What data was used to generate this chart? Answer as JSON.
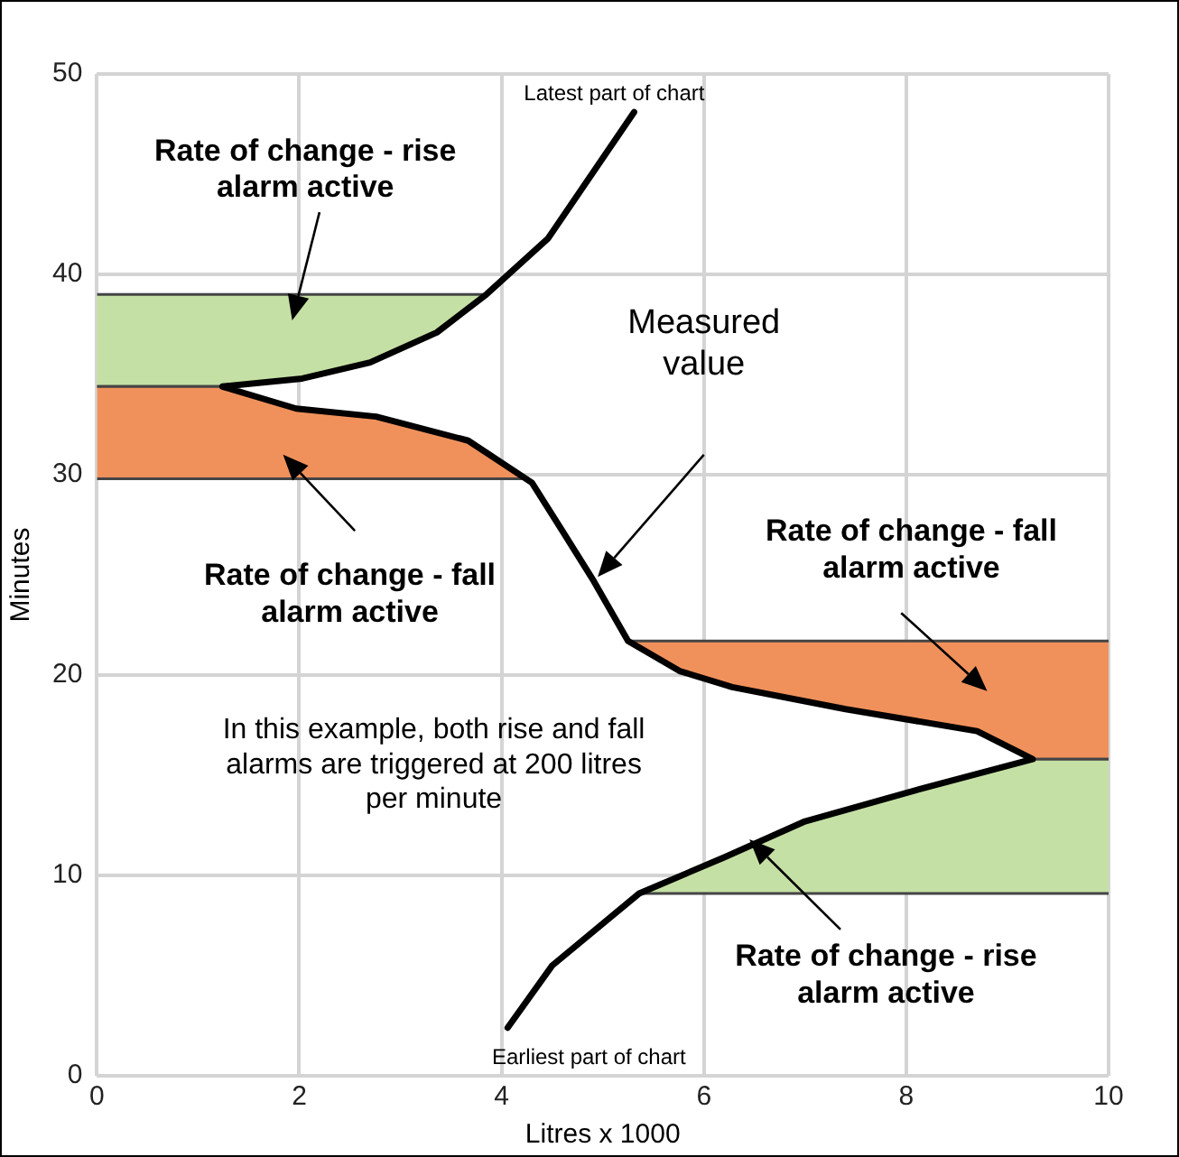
{
  "chart_data": {
    "type": "line",
    "xlabel": "Litres x 1000",
    "ylabel": "Minutes",
    "xlim": [
      0,
      10
    ],
    "ylim": [
      0,
      50
    ],
    "xticks": [
      0,
      2,
      4,
      6,
      8,
      10
    ],
    "yticks": [
      0,
      10,
      20,
      30,
      40,
      50
    ],
    "grid": true,
    "marker": "none",
    "series": [
      {
        "color": "#000000",
        "x": [
          4.06,
          4.5,
          5.36,
          6.2,
          7.0,
          8.2,
          9.25,
          8.7,
          7.4,
          6.28,
          5.76,
          5.25,
          4.91,
          4.6,
          4.3,
          3.67,
          2.76,
          1.97,
          1.24,
          2.03,
          2.7,
          3.36,
          3.85,
          4.46,
          5.31
        ],
        "values": [
          2.4,
          5.5,
          9.1,
          10.9,
          12.7,
          14.4,
          15.8,
          17.2,
          18.3,
          19.4,
          20.2,
          21.7,
          24.7,
          27.2,
          29.6,
          31.7,
          32.9,
          33.3,
          34.4,
          34.8,
          35.6,
          37.1,
          39.0,
          41.8,
          48.1
        ]
      }
    ],
    "bands": [
      {
        "axis": "y",
        "from": 34.4,
        "to": 39.0,
        "label": "Rate of change - rise alarm active",
        "color": "#c5e0a4"
      },
      {
        "axis": "y",
        "from": 29.8,
        "to": 34.4,
        "label": "Rate of change - fall alarm active",
        "color": "#f0915c"
      },
      {
        "axis": "y",
        "from": 15.8,
        "to": 21.7,
        "label": "Rate of change - fall alarm active",
        "color": "#f0915c"
      },
      {
        "axis": "y",
        "from": 9.1,
        "to": 15.8,
        "label": "Rate of change - rise alarm active",
        "color": "#c5e0a4"
      }
    ],
    "annotations": [
      {
        "text": "Latest part of chart",
        "x": 5.31,
        "y": 48.1
      },
      {
        "text": "Earliest part of chart",
        "x": 4.06,
        "y": 2.4
      },
      "Measured value",
      "In this example,  both rise and fall alarms are triggered at 200 litres per minute"
    ]
  }
}
